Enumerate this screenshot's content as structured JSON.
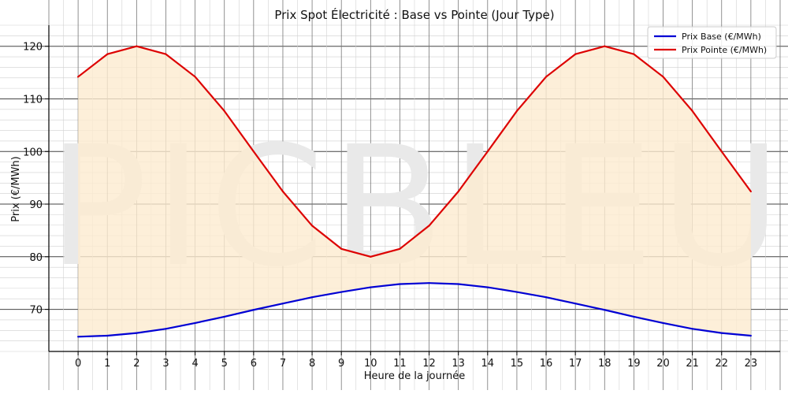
{
  "chart_data": {
    "type": "line",
    "title": "Prix Spot Électricité : Base vs Pointe (Jour Type)",
    "xlabel": "Heure de la journée",
    "ylabel": "Prix (€/MWh)",
    "x": [
      0,
      1,
      2,
      3,
      4,
      5,
      6,
      7,
      8,
      9,
      10,
      11,
      12,
      13,
      14,
      15,
      16,
      17,
      18,
      19,
      20,
      21,
      22,
      23
    ],
    "xlim": [
      -1,
      24
    ],
    "ylim": [
      62,
      124
    ],
    "yticks": [
      70,
      80,
      90,
      100,
      110,
      120
    ],
    "grid": true,
    "legend_position": "top-right",
    "fill_between_series": true,
    "fill_color": "#fdebd0",
    "watermark": "PICBLEU",
    "series": [
      {
        "name": "Prix Base (€/MWh)",
        "color": "#0000d4",
        "values": [
          64.8,
          65.0,
          65.5,
          66.3,
          67.4,
          68.6,
          69.9,
          71.1,
          72.3,
          73.3,
          74.2,
          74.8,
          75.0,
          74.8,
          74.2,
          73.3,
          72.3,
          71.1,
          69.9,
          68.6,
          67.4,
          66.3,
          65.5,
          65.0
        ]
      },
      {
        "name": "Prix Pointe (€/MWh)",
        "color": "#dd0000",
        "values": [
          114.2,
          118.5,
          120.0,
          118.5,
          114.2,
          107.7,
          100.0,
          92.4,
          85.9,
          81.5,
          80.0,
          81.5,
          85.9,
          92.4,
          100.0,
          107.7,
          114.2,
          118.5,
          120.0,
          118.5,
          114.2,
          107.7,
          100.0,
          92.4
        ]
      }
    ]
  }
}
